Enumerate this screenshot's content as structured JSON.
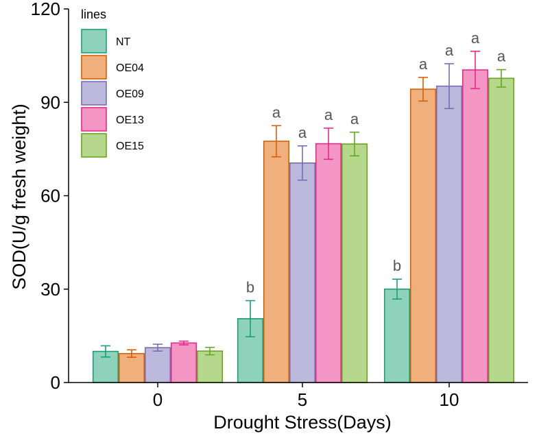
{
  "chart_data": {
    "type": "bar",
    "xlabel": "Drought Stress(Days)",
    "ylabel": "SOD(U/g fresh weight)",
    "ylim": [
      0,
      120
    ],
    "yticks": [
      0,
      30,
      60,
      90,
      120
    ],
    "categories": [
      "0",
      "5",
      "10"
    ],
    "legend": {
      "title": "lines",
      "placement": "top-left"
    },
    "series": [
      {
        "name": "NT",
        "fill": "#8fd2bb",
        "stroke": "#1b9e77",
        "values": [
          10,
          20.5,
          30
        ],
        "errors": [
          1.8,
          5.8,
          3.2
        ],
        "letters": [
          "",
          "b",
          "b"
        ]
      },
      {
        "name": "OE04",
        "fill": "#f0b07e",
        "stroke": "#d95f02",
        "values": [
          9.3,
          77.5,
          94.2
        ],
        "errors": [
          1.2,
          5.0,
          3.8
        ],
        "letters": [
          "",
          "a",
          "a"
        ]
      },
      {
        "name": "OE09",
        "fill": "#bbb8dc",
        "stroke": "#7570b3",
        "values": [
          11.2,
          70.5,
          95.2
        ],
        "errors": [
          1.1,
          5.5,
          7.2
        ],
        "letters": [
          "",
          "a",
          "a"
        ]
      },
      {
        "name": "OE13",
        "fill": "#f396c4",
        "stroke": "#e7298a",
        "values": [
          12.7,
          76.7,
          100.4
        ],
        "errors": [
          0.6,
          5.0,
          6.0
        ],
        "letters": [
          "",
          "a",
          "a"
        ]
      },
      {
        "name": "OE15",
        "fill": "#b6d88d",
        "stroke": "#66a61e",
        "values": [
          10.1,
          76.6,
          97.7
        ],
        "errors": [
          1.2,
          3.8,
          2.8
        ],
        "letters": [
          "",
          "a",
          "a"
        ]
      }
    ]
  }
}
